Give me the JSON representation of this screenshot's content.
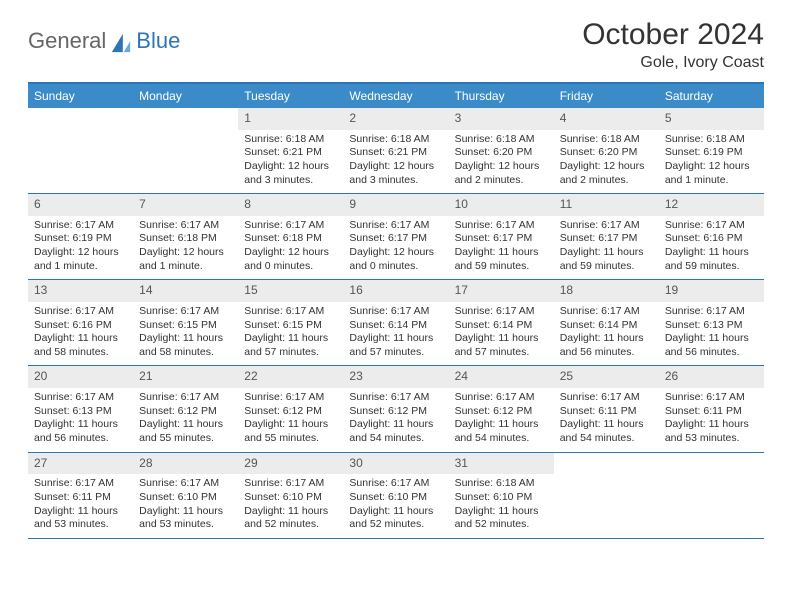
{
  "colors": {
    "header_blue": "#3b8bc9",
    "border_blue": "#2f75b5",
    "daynum_bg": "#ececec",
    "text": "#333333",
    "logo_gray": "#666666",
    "logo_blue": "#2f75b5",
    "white": "#ffffff"
  },
  "logo": {
    "general": "General",
    "blue": "Blue"
  },
  "title": "October 2024",
  "location": "Gole, Ivory Coast",
  "weekdays": [
    "Sunday",
    "Monday",
    "Tuesday",
    "Wednesday",
    "Thursday",
    "Friday",
    "Saturday"
  ],
  "weeks": [
    [
      null,
      null,
      {
        "n": "1",
        "sr": "Sunrise: 6:18 AM",
        "ss": "Sunset: 6:21 PM",
        "d1": "Daylight: 12 hours",
        "d2": "and 3 minutes."
      },
      {
        "n": "2",
        "sr": "Sunrise: 6:18 AM",
        "ss": "Sunset: 6:21 PM",
        "d1": "Daylight: 12 hours",
        "d2": "and 3 minutes."
      },
      {
        "n": "3",
        "sr": "Sunrise: 6:18 AM",
        "ss": "Sunset: 6:20 PM",
        "d1": "Daylight: 12 hours",
        "d2": "and 2 minutes."
      },
      {
        "n": "4",
        "sr": "Sunrise: 6:18 AM",
        "ss": "Sunset: 6:20 PM",
        "d1": "Daylight: 12 hours",
        "d2": "and 2 minutes."
      },
      {
        "n": "5",
        "sr": "Sunrise: 6:18 AM",
        "ss": "Sunset: 6:19 PM",
        "d1": "Daylight: 12 hours",
        "d2": "and 1 minute."
      }
    ],
    [
      {
        "n": "6",
        "sr": "Sunrise: 6:17 AM",
        "ss": "Sunset: 6:19 PM",
        "d1": "Daylight: 12 hours",
        "d2": "and 1 minute."
      },
      {
        "n": "7",
        "sr": "Sunrise: 6:17 AM",
        "ss": "Sunset: 6:18 PM",
        "d1": "Daylight: 12 hours",
        "d2": "and 1 minute."
      },
      {
        "n": "8",
        "sr": "Sunrise: 6:17 AM",
        "ss": "Sunset: 6:18 PM",
        "d1": "Daylight: 12 hours",
        "d2": "and 0 minutes."
      },
      {
        "n": "9",
        "sr": "Sunrise: 6:17 AM",
        "ss": "Sunset: 6:17 PM",
        "d1": "Daylight: 12 hours",
        "d2": "and 0 minutes."
      },
      {
        "n": "10",
        "sr": "Sunrise: 6:17 AM",
        "ss": "Sunset: 6:17 PM",
        "d1": "Daylight: 11 hours",
        "d2": "and 59 minutes."
      },
      {
        "n": "11",
        "sr": "Sunrise: 6:17 AM",
        "ss": "Sunset: 6:17 PM",
        "d1": "Daylight: 11 hours",
        "d2": "and 59 minutes."
      },
      {
        "n": "12",
        "sr": "Sunrise: 6:17 AM",
        "ss": "Sunset: 6:16 PM",
        "d1": "Daylight: 11 hours",
        "d2": "and 59 minutes."
      }
    ],
    [
      {
        "n": "13",
        "sr": "Sunrise: 6:17 AM",
        "ss": "Sunset: 6:16 PM",
        "d1": "Daylight: 11 hours",
        "d2": "and 58 minutes."
      },
      {
        "n": "14",
        "sr": "Sunrise: 6:17 AM",
        "ss": "Sunset: 6:15 PM",
        "d1": "Daylight: 11 hours",
        "d2": "and 58 minutes."
      },
      {
        "n": "15",
        "sr": "Sunrise: 6:17 AM",
        "ss": "Sunset: 6:15 PM",
        "d1": "Daylight: 11 hours",
        "d2": "and 57 minutes."
      },
      {
        "n": "16",
        "sr": "Sunrise: 6:17 AM",
        "ss": "Sunset: 6:14 PM",
        "d1": "Daylight: 11 hours",
        "d2": "and 57 minutes."
      },
      {
        "n": "17",
        "sr": "Sunrise: 6:17 AM",
        "ss": "Sunset: 6:14 PM",
        "d1": "Daylight: 11 hours",
        "d2": "and 57 minutes."
      },
      {
        "n": "18",
        "sr": "Sunrise: 6:17 AM",
        "ss": "Sunset: 6:14 PM",
        "d1": "Daylight: 11 hours",
        "d2": "and 56 minutes."
      },
      {
        "n": "19",
        "sr": "Sunrise: 6:17 AM",
        "ss": "Sunset: 6:13 PM",
        "d1": "Daylight: 11 hours",
        "d2": "and 56 minutes."
      }
    ],
    [
      {
        "n": "20",
        "sr": "Sunrise: 6:17 AM",
        "ss": "Sunset: 6:13 PM",
        "d1": "Daylight: 11 hours",
        "d2": "and 56 minutes."
      },
      {
        "n": "21",
        "sr": "Sunrise: 6:17 AM",
        "ss": "Sunset: 6:12 PM",
        "d1": "Daylight: 11 hours",
        "d2": "and 55 minutes."
      },
      {
        "n": "22",
        "sr": "Sunrise: 6:17 AM",
        "ss": "Sunset: 6:12 PM",
        "d1": "Daylight: 11 hours",
        "d2": "and 55 minutes."
      },
      {
        "n": "23",
        "sr": "Sunrise: 6:17 AM",
        "ss": "Sunset: 6:12 PM",
        "d1": "Daylight: 11 hours",
        "d2": "and 54 minutes."
      },
      {
        "n": "24",
        "sr": "Sunrise: 6:17 AM",
        "ss": "Sunset: 6:12 PM",
        "d1": "Daylight: 11 hours",
        "d2": "and 54 minutes."
      },
      {
        "n": "25",
        "sr": "Sunrise: 6:17 AM",
        "ss": "Sunset: 6:11 PM",
        "d1": "Daylight: 11 hours",
        "d2": "and 54 minutes."
      },
      {
        "n": "26",
        "sr": "Sunrise: 6:17 AM",
        "ss": "Sunset: 6:11 PM",
        "d1": "Daylight: 11 hours",
        "d2": "and 53 minutes."
      }
    ],
    [
      {
        "n": "27",
        "sr": "Sunrise: 6:17 AM",
        "ss": "Sunset: 6:11 PM",
        "d1": "Daylight: 11 hours",
        "d2": "and 53 minutes."
      },
      {
        "n": "28",
        "sr": "Sunrise: 6:17 AM",
        "ss": "Sunset: 6:10 PM",
        "d1": "Daylight: 11 hours",
        "d2": "and 53 minutes."
      },
      {
        "n": "29",
        "sr": "Sunrise: 6:17 AM",
        "ss": "Sunset: 6:10 PM",
        "d1": "Daylight: 11 hours",
        "d2": "and 52 minutes."
      },
      {
        "n": "30",
        "sr": "Sunrise: 6:17 AM",
        "ss": "Sunset: 6:10 PM",
        "d1": "Daylight: 11 hours",
        "d2": "and 52 minutes."
      },
      {
        "n": "31",
        "sr": "Sunrise: 6:18 AM",
        "ss": "Sunset: 6:10 PM",
        "d1": "Daylight: 11 hours",
        "d2": "and 52 minutes."
      },
      null,
      null
    ]
  ]
}
